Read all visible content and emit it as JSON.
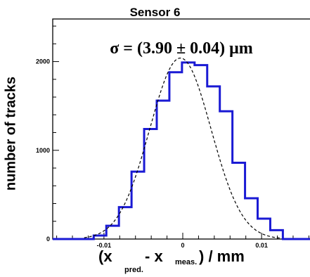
{
  "chart_data": {
    "type": "bar",
    "title": "Sensor 6",
    "ylabel": "number of tracks",
    "xlabel": {
      "open": "(x",
      "sub1": "pred.",
      "dash": " - x",
      "sub2": "meas.",
      "close": ") / mm"
    },
    "annotation": "σ = (3.90 ± 0.04) μm",
    "xlim": [
      -0.0165,
      0.0165
    ],
    "ylim": [
      0,
      2480
    ],
    "yticks": [
      {
        "value": 0,
        "label": "0"
      },
      {
        "value": 1000,
        "label": "1000"
      },
      {
        "value": 2000,
        "label": "2000"
      }
    ],
    "xticks": [
      {
        "value": -0.01,
        "label": "-0.01"
      },
      {
        "value": 0,
        "label": "0"
      },
      {
        "value": 0.01,
        "label": "0.01"
      }
    ],
    "bin_edges": [
      -0.0165,
      -0.0113,
      -0.0097,
      -0.0081,
      -0.0065,
      -0.0049,
      -0.0033,
      -0.0017,
      -0.0001,
      0.0015,
      0.0031,
      0.0047,
      0.0063,
      0.0079,
      0.0095,
      0.0111,
      0.0127,
      0.0165
    ],
    "values": [
      0,
      40,
      150,
      360,
      760,
      1240,
      1560,
      1880,
      1990,
      1960,
      1720,
      1440,
      860,
      460,
      230,
      100,
      0
    ],
    "fit": {
      "type": "gaussian",
      "mean": -0.0003,
      "sigma": 0.0039,
      "amplitude": 2040
    },
    "colors": {
      "histogram": "#1a1ad4",
      "fit": "#000000",
      "axes": "#000000"
    }
  }
}
